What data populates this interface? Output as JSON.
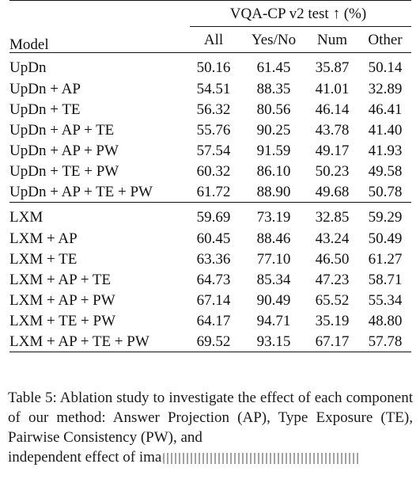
{
  "table": {
    "model_header": "Model",
    "group_header": "VQA-CP v2 test ↑ (%)",
    "columns": [
      "All",
      "Yes/No",
      "Num",
      "Other"
    ],
    "sections": [
      {
        "rows": [
          {
            "model": "UpDn",
            "all": "50.16",
            "yesno": "61.45",
            "num": "35.87",
            "other": "50.14"
          },
          {
            "model": "UpDn + AP",
            "all": "54.51",
            "yesno": "88.35",
            "num": "41.01",
            "other": "32.89"
          },
          {
            "model": "UpDn + TE",
            "all": "56.32",
            "yesno": "80.56",
            "num": "46.14",
            "other": "46.41"
          },
          {
            "model": "UpDn + AP + TE",
            "all": "55.76",
            "yesno": "90.25",
            "num": "43.78",
            "other": "41.40"
          },
          {
            "model": "UpDn + AP + PW",
            "all": "57.54",
            "yesno": "91.59",
            "num": "49.17",
            "other": "41.93"
          },
          {
            "model": "UpDn + TE + PW",
            "all": "60.32",
            "yesno": "86.10",
            "num": "50.23",
            "other": "49.58"
          },
          {
            "model": "UpDn + AP + TE + PW",
            "all": "61.72",
            "yesno": "88.90",
            "num": "49.68",
            "other": "50.78"
          }
        ]
      },
      {
        "rows": [
          {
            "model": "LXM",
            "all": "59.69",
            "yesno": "73.19",
            "num": "32.85",
            "other": "59.29"
          },
          {
            "model": "LXM + AP",
            "all": "60.45",
            "yesno": "88.46",
            "num": "43.24",
            "other": "50.49"
          },
          {
            "model": "LXM + TE",
            "all": "63.36",
            "yesno": "77.10",
            "num": "46.50",
            "other": "61.27"
          },
          {
            "model": "LXM + AP + TE",
            "all": "64.73",
            "yesno": "85.34",
            "num": "47.23",
            "other": "58.71"
          },
          {
            "model": "LXM + AP + PW",
            "all": "67.14",
            "yesno": "90.49",
            "num": "65.52",
            "other": "55.34"
          },
          {
            "model": "LXM + TE + PW",
            "all": "64.17",
            "yesno": "94.71",
            "num": "35.19",
            "other": "48.80"
          },
          {
            "model": "LXM + AP + TE + PW",
            "all": "69.52",
            "yesno": "93.15",
            "num": "67.17",
            "other": "57.78"
          }
        ]
      }
    ]
  },
  "caption": {
    "text": "Table 5: Ablation study to investigate the effect of each component of our method: Answer Projection (AP), Type Exposure (TE), Pairwise Consistency (PW), and",
    "last_line_visible": "independent effect of ima"
  }
}
